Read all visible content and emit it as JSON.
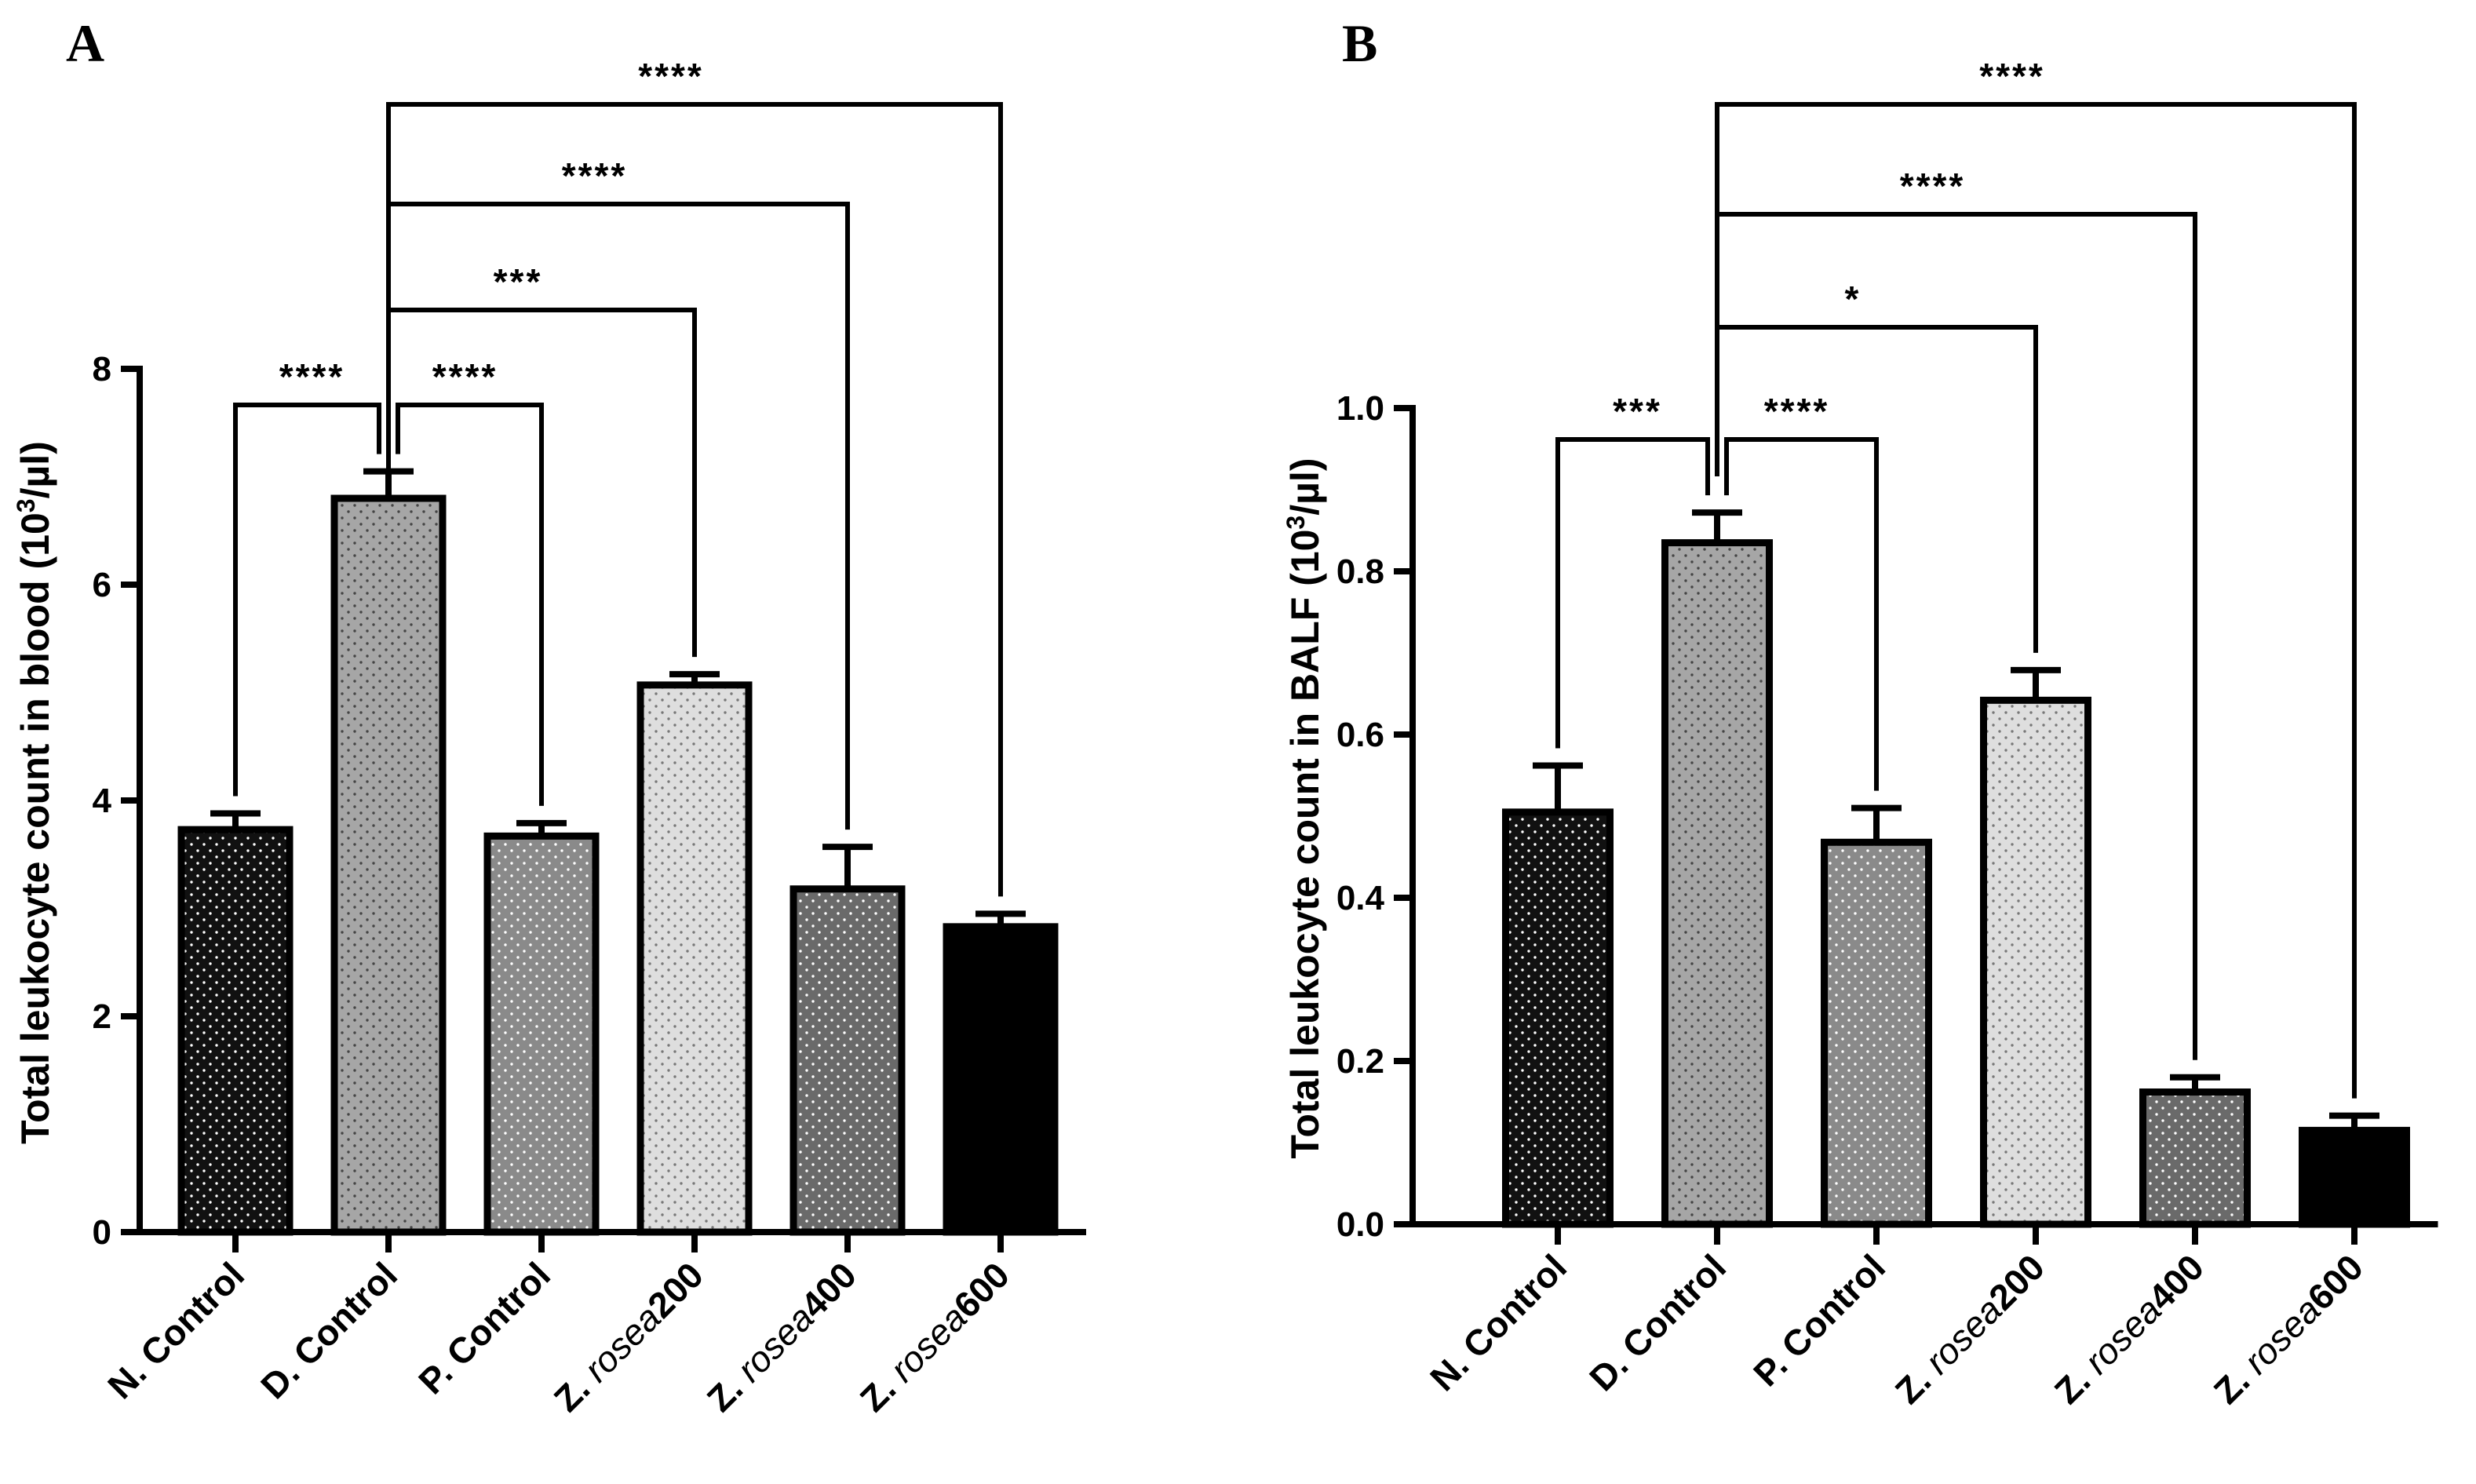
{
  "chart_data": [
    {
      "type": "bar",
      "panel": "A",
      "ylabel_main": "Total leukocyte count in blood (10",
      "ylabel_sup": "3",
      "ylabel_end": "/µl)",
      "ylim": [
        0,
        8
      ],
      "yticks": [
        "0",
        "2",
        "4",
        "6",
        "8"
      ],
      "categories": [
        {
          "prefix": "N. Control",
          "italic": "",
          "suffix": ""
        },
        {
          "prefix": "D. Control",
          "italic": "",
          "suffix": ""
        },
        {
          "prefix": "P. Control",
          "italic": "",
          "suffix": ""
        },
        {
          "prefix": "Z. ",
          "italic": "rosea",
          "suffix": "200"
        },
        {
          "prefix": "Z. ",
          "italic": "rosea",
          "suffix": "400"
        },
        {
          "prefix": "Z. ",
          "italic": "rosea",
          "suffix": "600"
        }
      ],
      "values": [
        3.73,
        6.8,
        3.67,
        5.07,
        3.18,
        2.83
      ],
      "errors": [
        0.15,
        0.25,
        0.12,
        0.1,
        0.39,
        0.12
      ],
      "fills": [
        "#111111",
        "#a6a6a6",
        "#8a8a8a",
        "#dedede",
        "#6a6a6a",
        "#000000"
      ],
      "dots": [
        "#ffffff",
        "#444444",
        "#ffffff",
        "#777777",
        "#ffffff",
        "#000000"
      ],
      "comparisons": [
        {
          "from": 1,
          "to": 0,
          "label": "****",
          "level": 0
        },
        {
          "from": 1,
          "to": 2,
          "label": "****",
          "level": 0
        },
        {
          "from": 1,
          "to": 3,
          "label": "***",
          "level": 1
        },
        {
          "from": 1,
          "to": 4,
          "label": "****",
          "level": 2
        },
        {
          "from": 1,
          "to": 5,
          "label": "****",
          "level": 3
        }
      ]
    },
    {
      "type": "bar",
      "panel": "B",
      "ylabel_main": "Total leukocyte count in BALF (10",
      "ylabel_sup": "3",
      "ylabel_end": "/µl)",
      "ylim": [
        0,
        1.0
      ],
      "yticks": [
        "0.0",
        "0.2",
        "0.4",
        "0.6",
        "0.8",
        "1.0"
      ],
      "categories": [
        {
          "prefix": "N. Control",
          "italic": "",
          "suffix": ""
        },
        {
          "prefix": "D. Control",
          "italic": "",
          "suffix": ""
        },
        {
          "prefix": "P. Control",
          "italic": "",
          "suffix": ""
        },
        {
          "prefix": "Z. ",
          "italic": "rosea",
          "suffix": "200"
        },
        {
          "prefix": "Z. ",
          "italic": "rosea",
          "suffix": "400"
        },
        {
          "prefix": "Z. ",
          "italic": "rosea",
          "suffix": "600"
        }
      ],
      "values": [
        0.505,
        0.835,
        0.468,
        0.642,
        0.162,
        0.115
      ],
      "errors": [
        0.057,
        0.037,
        0.042,
        0.037,
        0.018,
        0.018
      ],
      "fills": [
        "#111111",
        "#a6a6a6",
        "#8a8a8a",
        "#dedede",
        "#6a6a6a",
        "#000000"
      ],
      "dots": [
        "#ffffff",
        "#444444",
        "#ffffff",
        "#777777",
        "#ffffff",
        "#000000"
      ],
      "comparisons": [
        {
          "from": 1,
          "to": 0,
          "label": "***",
          "level": 0
        },
        {
          "from": 1,
          "to": 2,
          "label": "****",
          "level": 0
        },
        {
          "from": 1,
          "to": 3,
          "label": "*",
          "level": 1
        },
        {
          "from": 1,
          "to": 4,
          "label": "****",
          "level": 2
        },
        {
          "from": 1,
          "to": 5,
          "label": "****",
          "level": 3
        }
      ]
    }
  ]
}
